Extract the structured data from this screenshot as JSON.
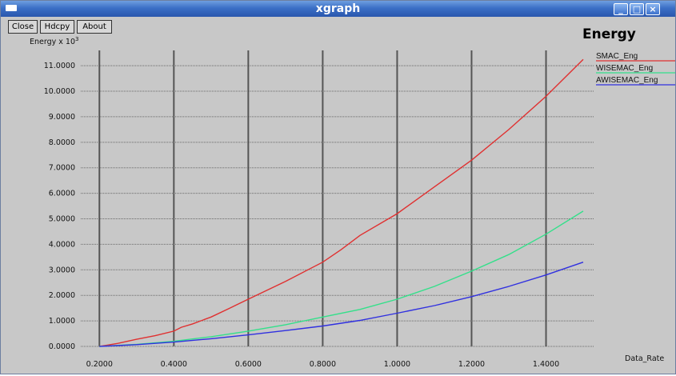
{
  "window": {
    "title": "xgraph",
    "controls": {
      "minimize": "_",
      "maximize": "□",
      "close": "×"
    },
    "titlebar_color": "#3b6fc6"
  },
  "toolbar": {
    "close_label": "Close",
    "hdcpy_label": "Hdcpy",
    "about_label": "About"
  },
  "chart_data": {
    "type": "line",
    "title": "Energy",
    "ylabel": "Energy x 10",
    "ylabel_exponent": "3",
    "xlabel": "Data_Rate",
    "xlim": [
      0.15,
      1.53
    ],
    "ylim": [
      0,
      11.6
    ],
    "x_ticks": [
      "0.2000",
      "0.4000",
      "0.6000",
      "0.8000",
      "1.0000",
      "1.2000",
      "1.4000"
    ],
    "x_tick_values": [
      0.2,
      0.4,
      0.6,
      0.8,
      1.0,
      1.2,
      1.4
    ],
    "y_ticks": [
      "0.0000",
      "1.0000",
      "2.0000",
      "3.0000",
      "4.0000",
      "5.0000",
      "6.0000",
      "7.0000",
      "8.0000",
      "9.0000",
      "10.0000",
      "11.0000"
    ],
    "y_tick_values": [
      0,
      1,
      2,
      3,
      4,
      5,
      6,
      7,
      8,
      9,
      10,
      11
    ],
    "grid": true,
    "legend_position": "right",
    "series": [
      {
        "name": "SMAC_Eng",
        "color": "#e03030",
        "x": [
          0.2,
          0.25,
          0.3,
          0.35,
          0.4,
          0.42,
          0.45,
          0.5,
          0.55,
          0.6,
          0.7,
          0.8,
          0.85,
          0.9,
          1.0,
          1.1,
          1.2,
          1.3,
          1.4,
          1.5
        ],
        "y": [
          0.0,
          0.12,
          0.28,
          0.42,
          0.6,
          0.75,
          0.88,
          1.15,
          1.5,
          1.85,
          2.55,
          3.3,
          3.8,
          4.35,
          5.2,
          6.25,
          7.3,
          8.5,
          9.8,
          11.25
        ]
      },
      {
        "name": "WISEMAC_Eng",
        "color": "#33e08a",
        "x": [
          0.2,
          0.3,
          0.4,
          0.5,
          0.6,
          0.7,
          0.8,
          0.9,
          1.0,
          1.1,
          1.2,
          1.3,
          1.4,
          1.5
        ],
        "y": [
          0.0,
          0.08,
          0.2,
          0.38,
          0.6,
          0.85,
          1.15,
          1.45,
          1.85,
          2.35,
          2.95,
          3.6,
          4.4,
          5.3
        ]
      },
      {
        "name": "AWISEMAC_Eng",
        "color": "#3030e0",
        "x": [
          0.2,
          0.3,
          0.4,
          0.5,
          0.6,
          0.7,
          0.8,
          0.9,
          1.0,
          1.1,
          1.2,
          1.3,
          1.4,
          1.5
        ],
        "y": [
          0.0,
          0.07,
          0.17,
          0.3,
          0.45,
          0.62,
          0.8,
          1.02,
          1.3,
          1.6,
          1.95,
          2.35,
          2.8,
          3.3
        ]
      }
    ]
  }
}
